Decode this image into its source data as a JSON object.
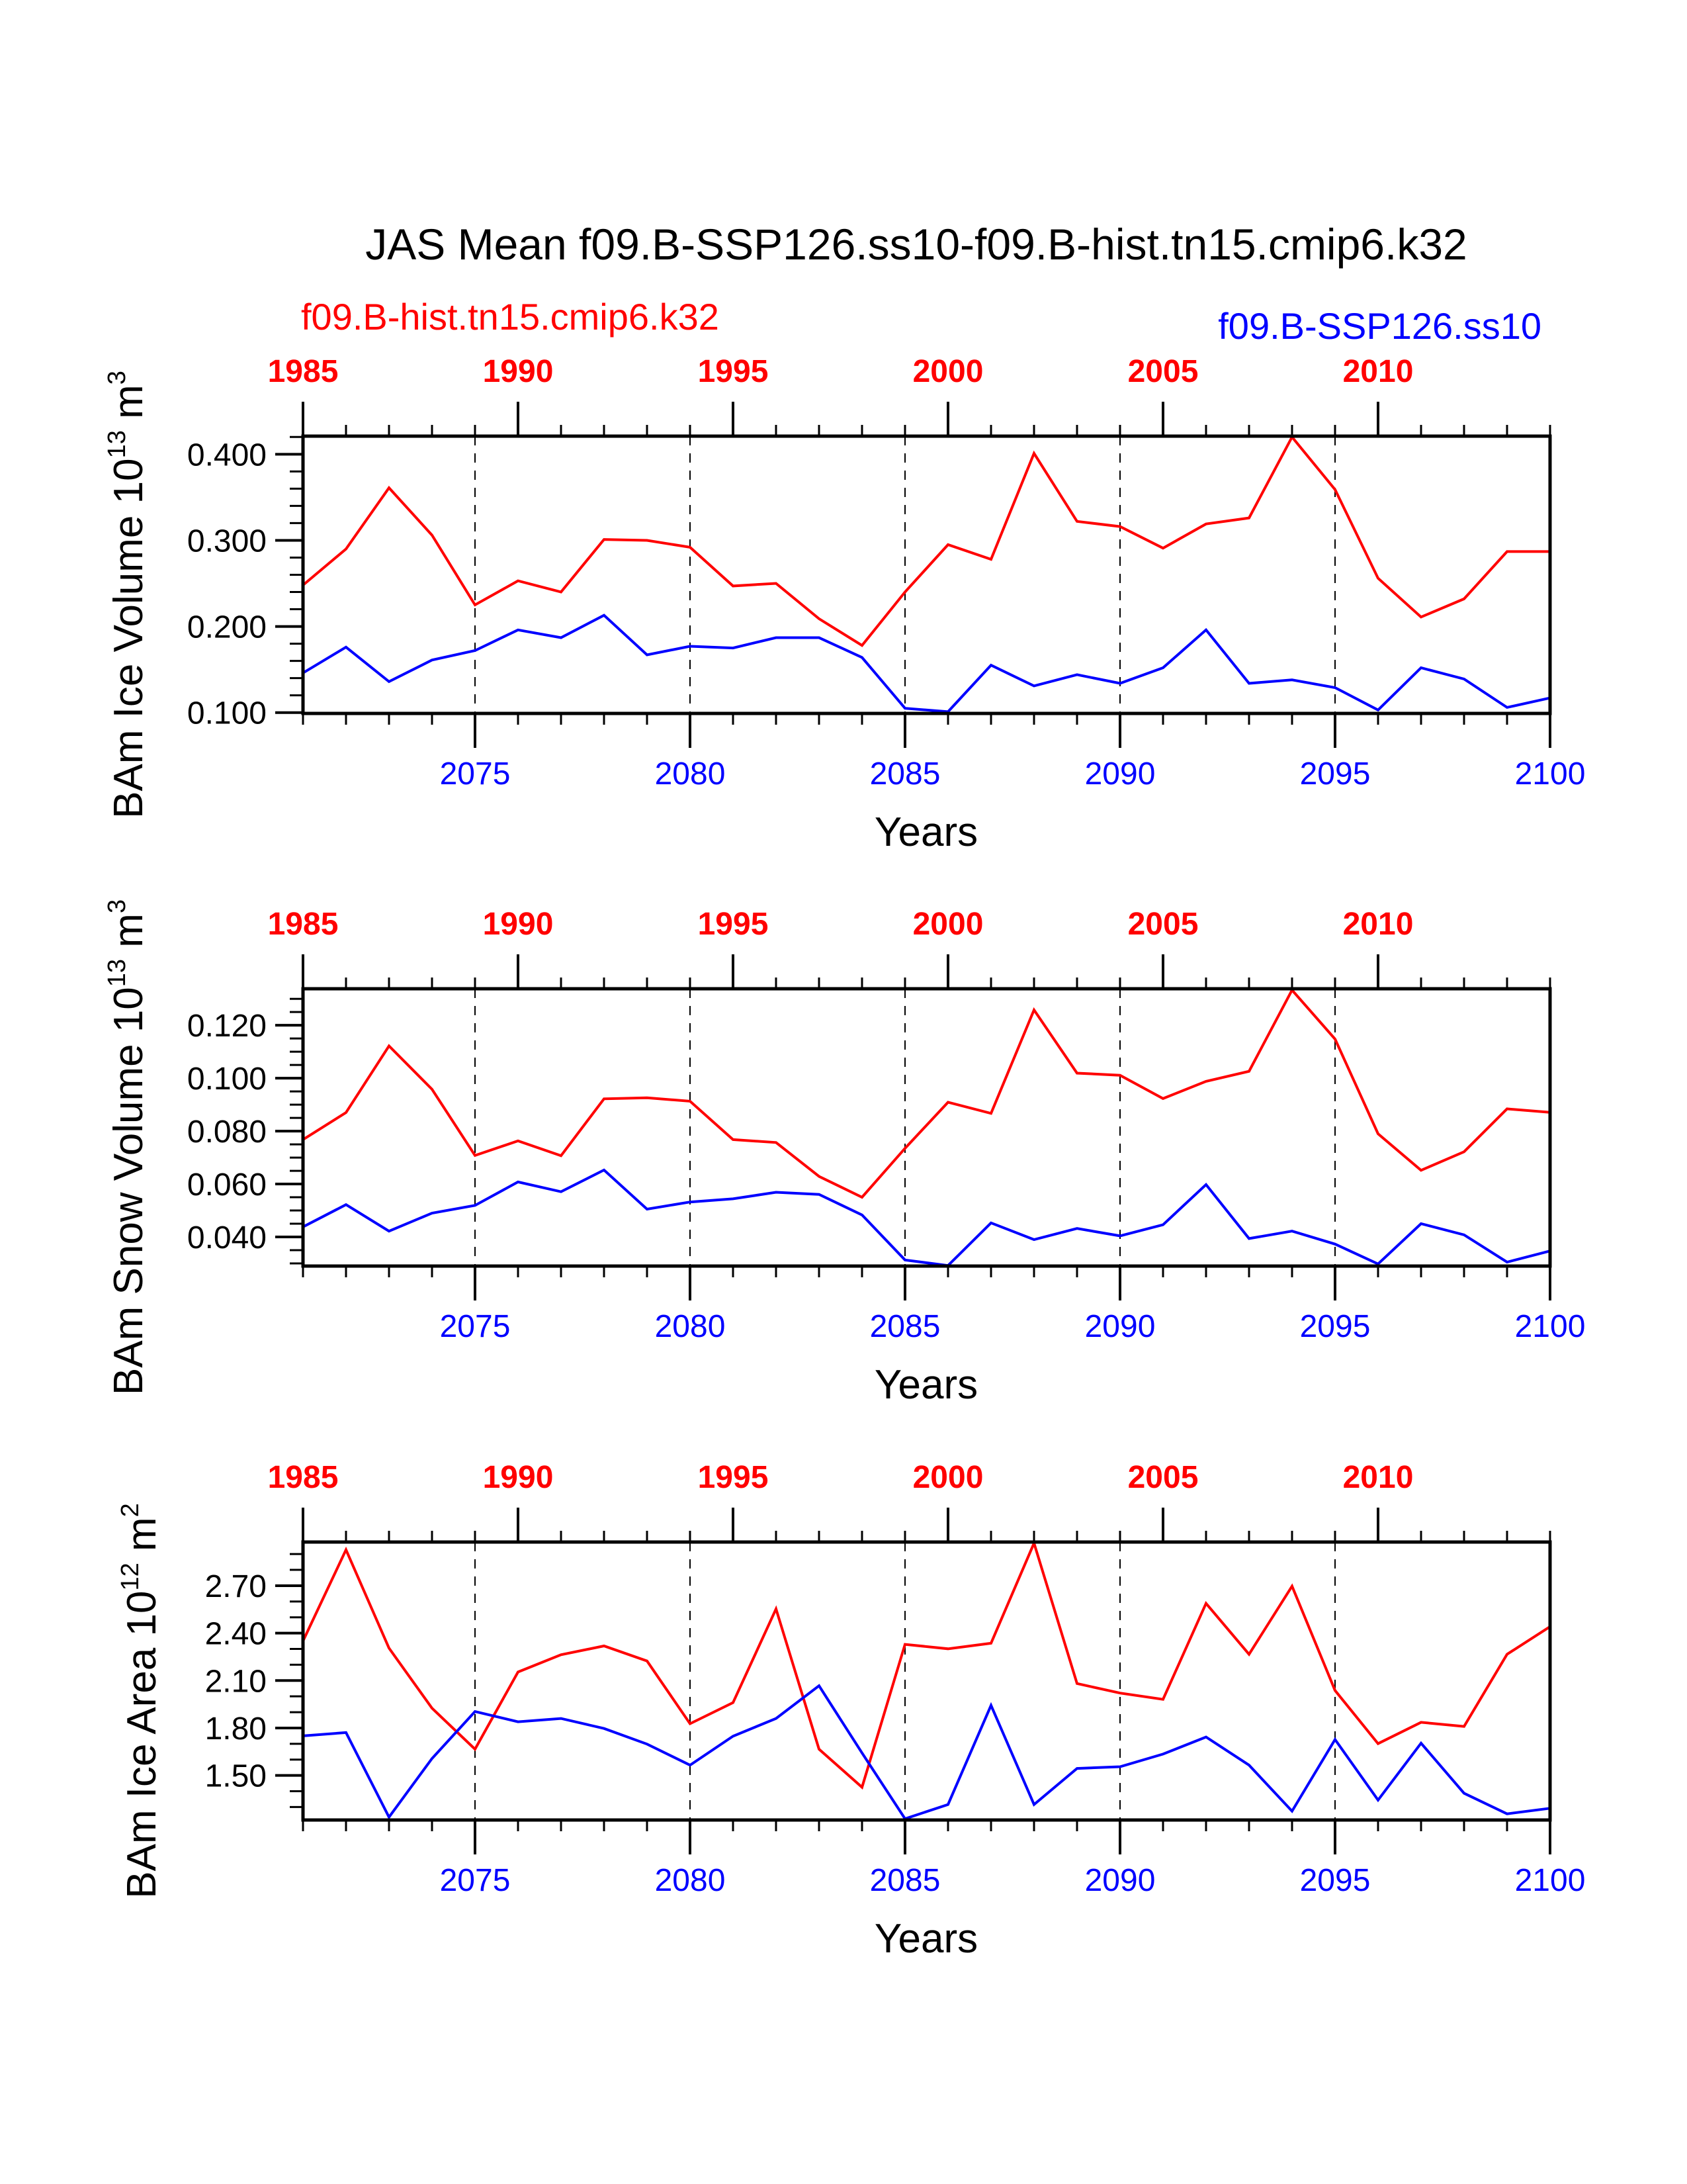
{
  "title": "JAS Mean f09.B-SSP126.ss10-f09.B-hist.tn15.cmip6.k32",
  "legend": {
    "left": {
      "label": "f09.B-hist.tn15.cmip6.k32",
      "color": "#ff0000"
    },
    "right": {
      "label": "f09.B-SSP126.ss10",
      "color": "#0000ff"
    }
  },
  "chart_data": [
    {
      "type": "line",
      "title": "",
      "ylabel": "BAm Ice Volume 10",
      "ylabel_exp": "13",
      "ylabel_unit": " m",
      "ylabel_unit_exp": "3",
      "xlabel": "Years",
      "ylim": [
        0.099,
        0.421
      ],
      "yticks": [
        0.1,
        0.2,
        0.3,
        0.4
      ],
      "ytick_labels": [
        "0.100",
        "0.200",
        "0.300",
        "0.400"
      ],
      "yminor_step": 0.02,
      "xlim": [
        2071,
        2100
      ],
      "xticks_bottom": [
        2075,
        2080,
        2085,
        2090,
        2095,
        2100
      ],
      "xtick_labels_bottom": [
        "2075",
        "2080",
        "2085",
        "2090",
        "2095",
        "2100"
      ],
      "xtick_labels_top": [
        "1985",
        "1990",
        "1995",
        "2000",
        "2005",
        "2010"
      ],
      "top_axis_offset": 86,
      "vertical_reference_lines": [
        2075,
        2080,
        2085,
        2090,
        2095
      ],
      "x": [
        2071,
        2072,
        2073,
        2074,
        2075,
        2076,
        2077,
        2078,
        2079,
        2080,
        2081,
        2082,
        2083,
        2084,
        2085,
        2086,
        2087,
        2088,
        2089,
        2090,
        2091,
        2092,
        2093,
        2094,
        2095,
        2096,
        2097,
        2098,
        2099,
        2100
      ],
      "series": [
        {
          "name": "f09.B-hist.tn15.cmip6.k32",
          "color": "#ff0000",
          "values": [
            0.248,
            0.29,
            0.361,
            0.306,
            0.225,
            0.253,
            0.24,
            0.301,
            0.3,
            0.292,
            0.247,
            0.25,
            0.209,
            0.178,
            0.24,
            0.295,
            0.278,
            0.401,
            0.322,
            0.316,
            0.291,
            0.319,
            0.326,
            0.42,
            0.359,
            0.256,
            0.211,
            0.232,
            0.287,
            0.287
          ]
        },
        {
          "name": "f09.B-SSP126.ss10",
          "color": "#0000ff",
          "values": [
            0.146,
            0.176,
            0.136,
            0.161,
            0.172,
            0.196,
            0.187,
            0.213,
            0.167,
            0.177,
            0.175,
            0.187,
            0.187,
            0.164,
            0.105,
            0.101,
            0.155,
            0.131,
            0.144,
            0.134,
            0.152,
            0.196,
            0.134,
            0.138,
            0.129,
            0.103,
            0.152,
            0.139,
            0.106,
            0.117
          ]
        }
      ]
    },
    {
      "type": "line",
      "title": "",
      "ylabel": "BAm Snow Volume 10",
      "ylabel_exp": "13",
      "ylabel_unit": " m",
      "ylabel_unit_exp": "3",
      "xlabel": "Years",
      "ylim": [
        0.029,
        0.1338
      ],
      "yticks": [
        0.04,
        0.06,
        0.08,
        0.1,
        0.12
      ],
      "ytick_labels": [
        "0.040",
        "0.060",
        "0.080",
        "0.100",
        "0.120"
      ],
      "yminor_step": 0.005,
      "xlim": [
        2071,
        2100
      ],
      "xticks_bottom": [
        2075,
        2080,
        2085,
        2090,
        2095,
        2100
      ],
      "xtick_labels_bottom": [
        "2075",
        "2080",
        "2085",
        "2090",
        "2095",
        "2100"
      ],
      "xtick_labels_top": [
        "1985",
        "1990",
        "1995",
        "2000",
        "2005",
        "2010"
      ],
      "top_axis_offset": 86,
      "vertical_reference_lines": [
        2075,
        2080,
        2085,
        2090,
        2095
      ],
      "x": [
        2071,
        2072,
        2073,
        2074,
        2075,
        2076,
        2077,
        2078,
        2079,
        2080,
        2081,
        2082,
        2083,
        2084,
        2085,
        2086,
        2087,
        2088,
        2089,
        2090,
        2091,
        2092,
        2093,
        2094,
        2095,
        2096,
        2097,
        2098,
        2099,
        2100
      ],
      "series": [
        {
          "name": "f09.B-hist.tn15.cmip6.k32",
          "color": "#ff0000",
          "values": [
            0.0768,
            0.087,
            0.1122,
            0.0958,
            0.0708,
            0.0763,
            0.0707,
            0.0922,
            0.0926,
            0.0913,
            0.0768,
            0.0757,
            0.0629,
            0.055,
            0.0735,
            0.0909,
            0.0867,
            0.1258,
            0.1019,
            0.1011,
            0.0923,
            0.0988,
            0.1026,
            0.1333,
            0.1148,
            0.079,
            0.0652,
            0.0722,
            0.0884,
            0.0871
          ]
        },
        {
          "name": "f09.B-SSP126.ss10",
          "color": "#0000ff",
          "values": [
            0.0438,
            0.0522,
            0.0422,
            0.049,
            0.0519,
            0.0608,
            0.0571,
            0.0653,
            0.0505,
            0.0532,
            0.0544,
            0.0569,
            0.0561,
            0.0483,
            0.0313,
            0.0292,
            0.0453,
            0.039,
            0.0432,
            0.0404,
            0.0446,
            0.0598,
            0.0394,
            0.0422,
            0.0373,
            0.0298,
            0.045,
            0.0408,
            0.0305,
            0.0347
          ]
        }
      ]
    },
    {
      "type": "line",
      "title": "",
      "ylabel": "BAm Ice Area 10",
      "ylabel_exp": "12",
      "ylabel_unit": " m",
      "ylabel_unit_exp": "2",
      "xlabel": "Years",
      "ylim": [
        1.218,
        2.976
      ],
      "yticks": [
        1.5,
        1.8,
        2.1,
        2.4,
        2.7
      ],
      "ytick_labels": [
        "1.50",
        "1.80",
        "2.10",
        "2.40",
        "2.70"
      ],
      "yminor_step": 0.1,
      "xlim": [
        2071,
        2100
      ],
      "xticks_bottom": [
        2075,
        2080,
        2085,
        2090,
        2095,
        2100
      ],
      "xtick_labels_bottom": [
        "2075",
        "2080",
        "2085",
        "2090",
        "2095",
        "2100"
      ],
      "xtick_labels_top": [
        "1985",
        "1990",
        "1995",
        "2000",
        "2005",
        "2010"
      ],
      "top_axis_offset": 86,
      "vertical_reference_lines": [
        2075,
        2080,
        2085,
        2090,
        2095
      ],
      "x": [
        2071,
        2072,
        2073,
        2074,
        2075,
        2076,
        2077,
        2078,
        2079,
        2080,
        2081,
        2082,
        2083,
        2084,
        2085,
        2086,
        2087,
        2088,
        2089,
        2090,
        2091,
        2092,
        2093,
        2094,
        2095,
        2096,
        2097,
        2098,
        2099,
        2100
      ],
      "series": [
        {
          "name": "f09.B-hist.tn15.cmip6.k32",
          "color": "#ff0000",
          "values": [
            2.35,
            2.927,
            2.305,
            1.925,
            1.666,
            2.154,
            2.263,
            2.319,
            2.224,
            1.827,
            1.96,
            2.553,
            1.666,
            1.425,
            2.329,
            2.301,
            2.336,
            2.969,
            2.081,
            2.021,
            1.981,
            2.588,
            2.266,
            2.697,
            2.037,
            1.701,
            1.836,
            1.81,
            2.266,
            2.441
          ]
        },
        {
          "name": "f09.B-SSP126.ss10",
          "color": "#0000ff",
          "values": [
            1.75,
            1.771,
            1.236,
            1.607,
            1.904,
            1.839,
            1.86,
            1.797,
            1.698,
            1.565,
            1.748,
            1.86,
            2.067,
            1.642,
            1.226,
            1.316,
            1.943,
            1.316,
            1.544,
            1.555,
            1.635,
            1.743,
            1.565,
            1.274,
            1.727,
            1.344,
            1.704,
            1.387,
            1.257,
            1.292
          ]
        }
      ]
    }
  ]
}
